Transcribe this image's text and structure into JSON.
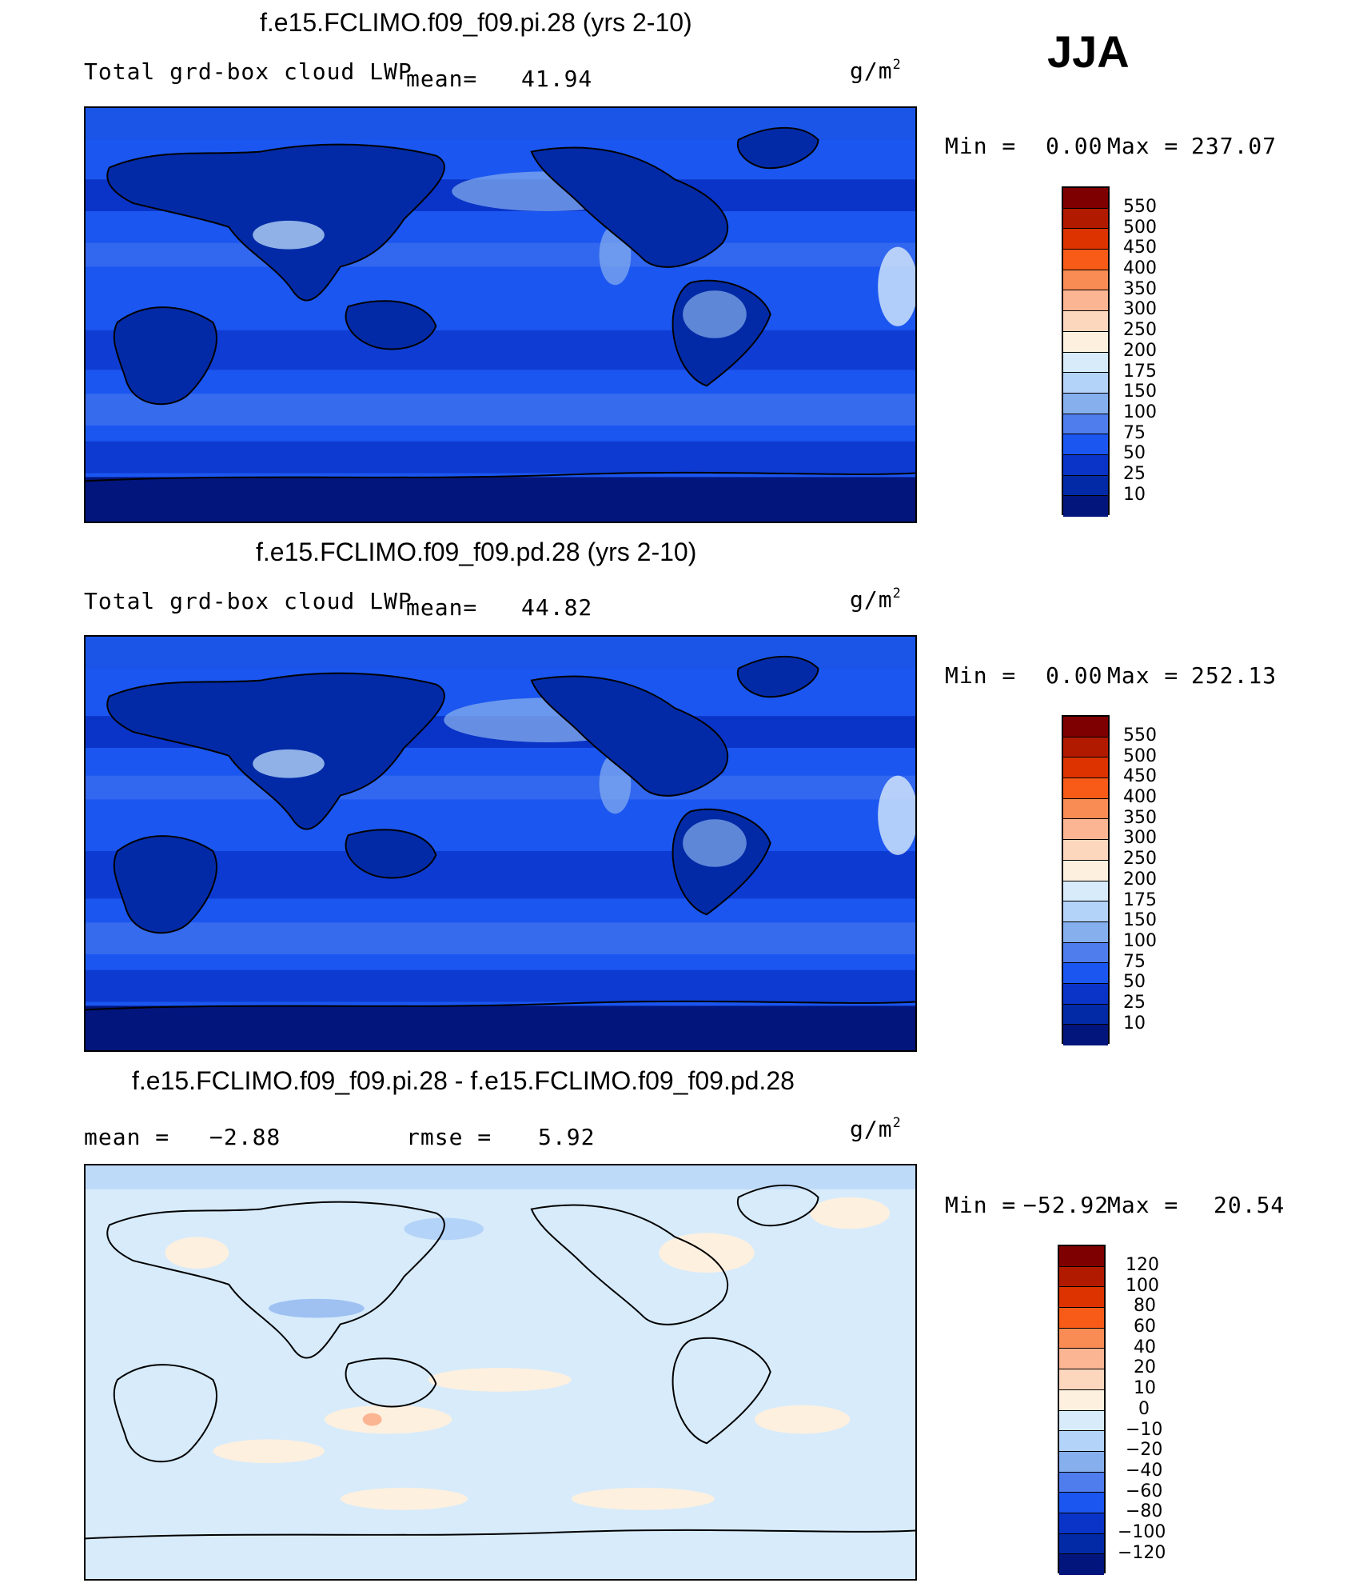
{
  "season": "JJA",
  "units_base": "g/m",
  "units_exp": "2",
  "panel1": {
    "title": "f.e15.FCLIMO.f09_f09.pi.28 (yrs 2-10)",
    "field": "Total grd-box cloud LWP",
    "mean_label": "mean=",
    "mean": "41.94",
    "min_label": "Min =",
    "min": "0.00",
    "max_label": "Max =",
    "max": "237.07",
    "legend": [
      "550",
      "500",
      "450",
      "400",
      "350",
      "300",
      "250",
      "200",
      "175",
      "150",
      "100",
      "75",
      "50",
      "25",
      "10"
    ],
    "colors": [
      "#7f0000",
      "#b21a00",
      "#dd3300",
      "#f75b17",
      "#f98b55",
      "#fbb592",
      "#fdd7bd",
      "#fdf0df",
      "#d7ebfb",
      "#b3d3f8",
      "#86afee",
      "#4f7ded",
      "#1b56f0",
      "#0a33c8",
      "#032aa6",
      "#02157c"
    ]
  },
  "panel2": {
    "title": "f.e15.FCLIMO.f09_f09.pd.28 (yrs 2-10)",
    "field": "Total grd-box cloud LWP",
    "mean_label": "mean=",
    "mean": "44.82",
    "min_label": "Min =",
    "min": "0.00",
    "max_label": "Max =",
    "max": "252.13",
    "legend": [
      "550",
      "500",
      "450",
      "400",
      "350",
      "300",
      "250",
      "200",
      "175",
      "150",
      "100",
      "75",
      "50",
      "25",
      "10"
    ],
    "colors": [
      "#7f0000",
      "#b21a00",
      "#dd3300",
      "#f75b17",
      "#f98b55",
      "#fbb592",
      "#fdd7bd",
      "#fdf0df",
      "#d7ebfb",
      "#b3d3f8",
      "#86afee",
      "#4f7ded",
      "#1b56f0",
      "#0a33c8",
      "#032aa6",
      "#02157c"
    ]
  },
  "panel3": {
    "title": "f.e15.FCLIMO.f09_f09.pi.28 - f.e15.FCLIMO.f09_f09.pd.28",
    "mean_label": "mean =",
    "mean": "−2.88",
    "rmse_label": "rmse =",
    "rmse": "5.92",
    "min_label": "Min =",
    "min": "−52.92",
    "max_label": "Max =",
    "max": "20.54",
    "legend": [
      "120",
      "100",
      "80",
      "60",
      "40",
      "20",
      "10",
      "0",
      "−10",
      "−20",
      "−40",
      "−60",
      "−80",
      "−100",
      "−120"
    ],
    "colors": [
      "#7f0000",
      "#b21a00",
      "#dd3300",
      "#f75b17",
      "#f98b55",
      "#fbb592",
      "#fdd7bd",
      "#fdf0df",
      "#d7ebfb",
      "#b3d3f8",
      "#86afee",
      "#4f7ded",
      "#1b56f0",
      "#0a33c8",
      "#032aa6",
      "#02157c"
    ]
  }
}
